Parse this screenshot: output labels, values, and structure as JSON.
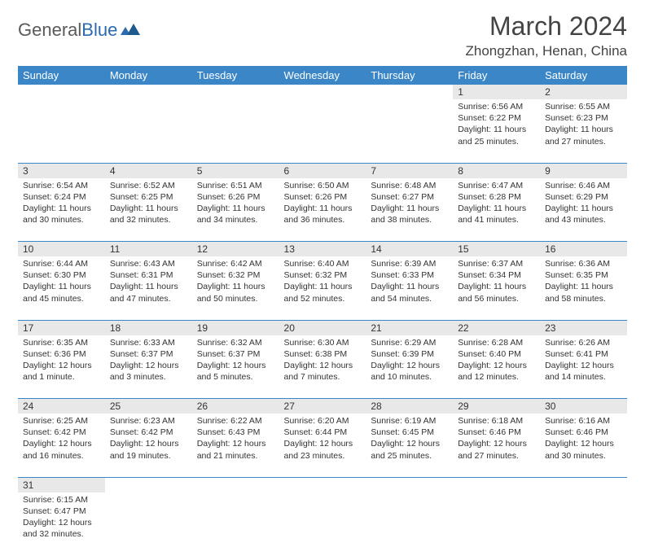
{
  "brand": {
    "name1": "General",
    "name2": "Blue"
  },
  "title": "March 2024",
  "location": "Zhongzhan, Henan, China",
  "colors": {
    "header_bg": "#3b86c7",
    "daynum_bg": "#e8e8e8",
    "border": "#3b86c7"
  },
  "daysOfWeek": [
    "Sunday",
    "Monday",
    "Tuesday",
    "Wednesday",
    "Thursday",
    "Friday",
    "Saturday"
  ],
  "weeks": [
    [
      null,
      null,
      null,
      null,
      null,
      {
        "n": "1",
        "sr": "Sunrise: 6:56 AM",
        "ss": "Sunset: 6:22 PM",
        "dl": "Daylight: 11 hours and 25 minutes."
      },
      {
        "n": "2",
        "sr": "Sunrise: 6:55 AM",
        "ss": "Sunset: 6:23 PM",
        "dl": "Daylight: 11 hours and 27 minutes."
      }
    ],
    [
      {
        "n": "3",
        "sr": "Sunrise: 6:54 AM",
        "ss": "Sunset: 6:24 PM",
        "dl": "Daylight: 11 hours and 30 minutes."
      },
      {
        "n": "4",
        "sr": "Sunrise: 6:52 AM",
        "ss": "Sunset: 6:25 PM",
        "dl": "Daylight: 11 hours and 32 minutes."
      },
      {
        "n": "5",
        "sr": "Sunrise: 6:51 AM",
        "ss": "Sunset: 6:26 PM",
        "dl": "Daylight: 11 hours and 34 minutes."
      },
      {
        "n": "6",
        "sr": "Sunrise: 6:50 AM",
        "ss": "Sunset: 6:26 PM",
        "dl": "Daylight: 11 hours and 36 minutes."
      },
      {
        "n": "7",
        "sr": "Sunrise: 6:48 AM",
        "ss": "Sunset: 6:27 PM",
        "dl": "Daylight: 11 hours and 38 minutes."
      },
      {
        "n": "8",
        "sr": "Sunrise: 6:47 AM",
        "ss": "Sunset: 6:28 PM",
        "dl": "Daylight: 11 hours and 41 minutes."
      },
      {
        "n": "9",
        "sr": "Sunrise: 6:46 AM",
        "ss": "Sunset: 6:29 PM",
        "dl": "Daylight: 11 hours and 43 minutes."
      }
    ],
    [
      {
        "n": "10",
        "sr": "Sunrise: 6:44 AM",
        "ss": "Sunset: 6:30 PM",
        "dl": "Daylight: 11 hours and 45 minutes."
      },
      {
        "n": "11",
        "sr": "Sunrise: 6:43 AM",
        "ss": "Sunset: 6:31 PM",
        "dl": "Daylight: 11 hours and 47 minutes."
      },
      {
        "n": "12",
        "sr": "Sunrise: 6:42 AM",
        "ss": "Sunset: 6:32 PM",
        "dl": "Daylight: 11 hours and 50 minutes."
      },
      {
        "n": "13",
        "sr": "Sunrise: 6:40 AM",
        "ss": "Sunset: 6:32 PM",
        "dl": "Daylight: 11 hours and 52 minutes."
      },
      {
        "n": "14",
        "sr": "Sunrise: 6:39 AM",
        "ss": "Sunset: 6:33 PM",
        "dl": "Daylight: 11 hours and 54 minutes."
      },
      {
        "n": "15",
        "sr": "Sunrise: 6:37 AM",
        "ss": "Sunset: 6:34 PM",
        "dl": "Daylight: 11 hours and 56 minutes."
      },
      {
        "n": "16",
        "sr": "Sunrise: 6:36 AM",
        "ss": "Sunset: 6:35 PM",
        "dl": "Daylight: 11 hours and 58 minutes."
      }
    ],
    [
      {
        "n": "17",
        "sr": "Sunrise: 6:35 AM",
        "ss": "Sunset: 6:36 PM",
        "dl": "Daylight: 12 hours and 1 minute."
      },
      {
        "n": "18",
        "sr": "Sunrise: 6:33 AM",
        "ss": "Sunset: 6:37 PM",
        "dl": "Daylight: 12 hours and 3 minutes."
      },
      {
        "n": "19",
        "sr": "Sunrise: 6:32 AM",
        "ss": "Sunset: 6:37 PM",
        "dl": "Daylight: 12 hours and 5 minutes."
      },
      {
        "n": "20",
        "sr": "Sunrise: 6:30 AM",
        "ss": "Sunset: 6:38 PM",
        "dl": "Daylight: 12 hours and 7 minutes."
      },
      {
        "n": "21",
        "sr": "Sunrise: 6:29 AM",
        "ss": "Sunset: 6:39 PM",
        "dl": "Daylight: 12 hours and 10 minutes."
      },
      {
        "n": "22",
        "sr": "Sunrise: 6:28 AM",
        "ss": "Sunset: 6:40 PM",
        "dl": "Daylight: 12 hours and 12 minutes."
      },
      {
        "n": "23",
        "sr": "Sunrise: 6:26 AM",
        "ss": "Sunset: 6:41 PM",
        "dl": "Daylight: 12 hours and 14 minutes."
      }
    ],
    [
      {
        "n": "24",
        "sr": "Sunrise: 6:25 AM",
        "ss": "Sunset: 6:42 PM",
        "dl": "Daylight: 12 hours and 16 minutes."
      },
      {
        "n": "25",
        "sr": "Sunrise: 6:23 AM",
        "ss": "Sunset: 6:42 PM",
        "dl": "Daylight: 12 hours and 19 minutes."
      },
      {
        "n": "26",
        "sr": "Sunrise: 6:22 AM",
        "ss": "Sunset: 6:43 PM",
        "dl": "Daylight: 12 hours and 21 minutes."
      },
      {
        "n": "27",
        "sr": "Sunrise: 6:20 AM",
        "ss": "Sunset: 6:44 PM",
        "dl": "Daylight: 12 hours and 23 minutes."
      },
      {
        "n": "28",
        "sr": "Sunrise: 6:19 AM",
        "ss": "Sunset: 6:45 PM",
        "dl": "Daylight: 12 hours and 25 minutes."
      },
      {
        "n": "29",
        "sr": "Sunrise: 6:18 AM",
        "ss": "Sunset: 6:46 PM",
        "dl": "Daylight: 12 hours and 27 minutes."
      },
      {
        "n": "30",
        "sr": "Sunrise: 6:16 AM",
        "ss": "Sunset: 6:46 PM",
        "dl": "Daylight: 12 hours and 30 minutes."
      }
    ],
    [
      {
        "n": "31",
        "sr": "Sunrise: 6:15 AM",
        "ss": "Sunset: 6:47 PM",
        "dl": "Daylight: 12 hours and 32 minutes."
      },
      null,
      null,
      null,
      null,
      null,
      null
    ]
  ]
}
